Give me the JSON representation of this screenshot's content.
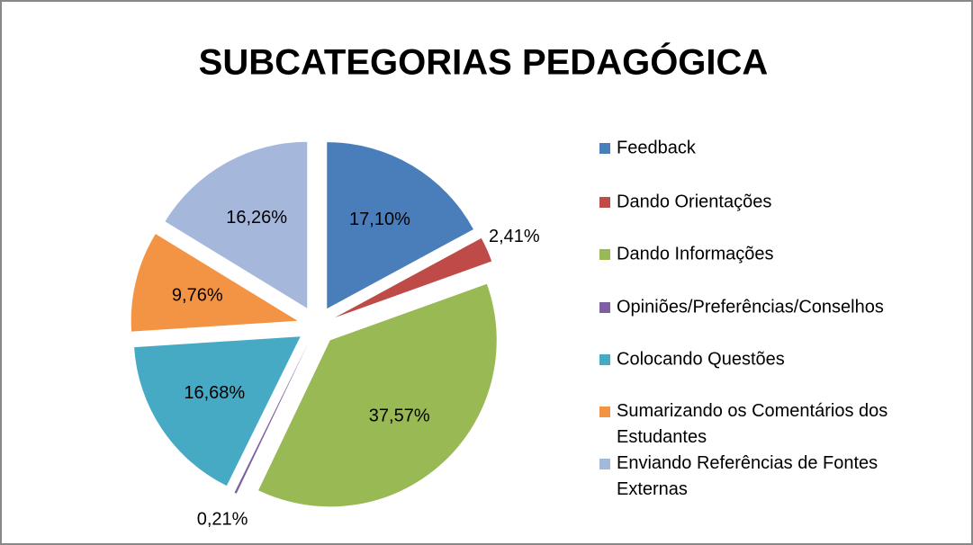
{
  "chart_data": {
    "type": "pie",
    "title": "SUBCATEGORIAS PEDAGÓGICA",
    "categories": [
      "Feedback",
      "Dando Orientações",
      "Dando Informações",
      "Opiniões/Preferências/Conselhos",
      "Colocando Questões",
      "Sumarizando os Comentários dos Estudantes",
      "Enviando Referências de Fontes Externas"
    ],
    "values": [
      17.1,
      2.41,
      37.57,
      0.21,
      16.68,
      9.76,
      16.26
    ],
    "value_labels": [
      "17,10%",
      "2,41%",
      "37,57%",
      "0,21%",
      "16,68%",
      "9,76%",
      "16,26%"
    ],
    "colors": [
      "#4a7ebb",
      "#be4b48",
      "#98b954",
      "#7d60a0",
      "#46aac5",
      "#f39444",
      "#a5b8dc"
    ],
    "legend": "right"
  }
}
